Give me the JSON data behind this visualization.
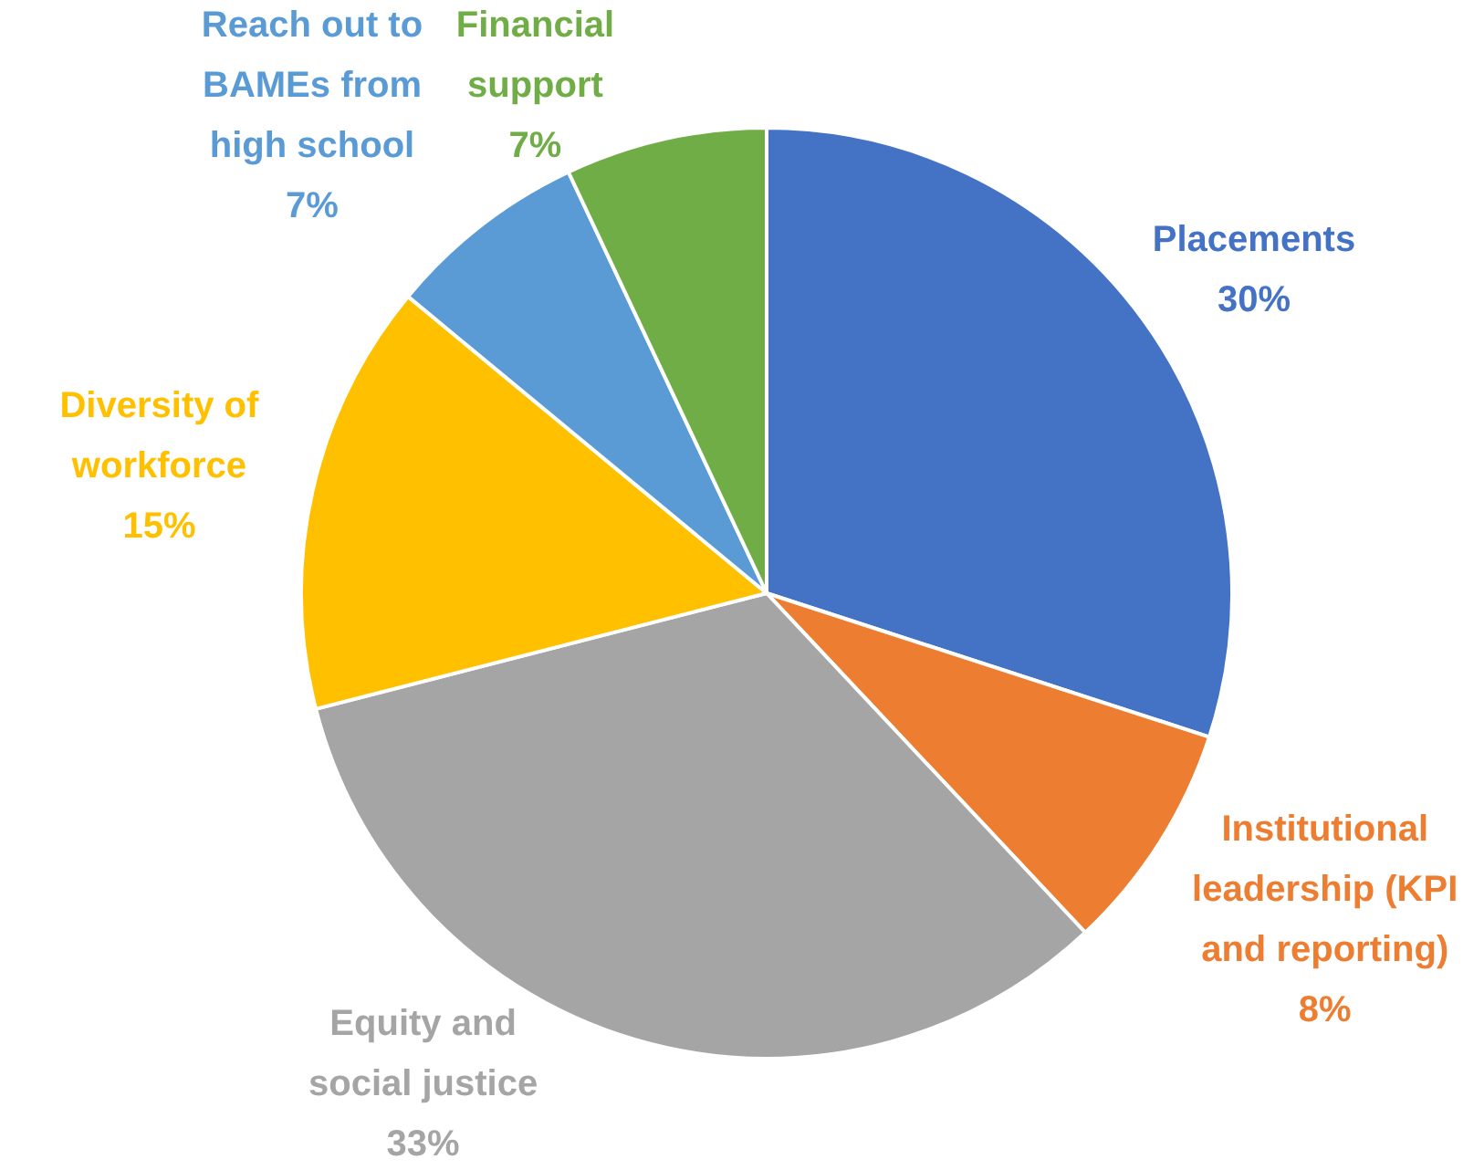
{
  "chart_data": {
    "type": "pie",
    "categories": [
      "Placements",
      "Institutional\nleadership (KPI\nand reporting)",
      "Equity and\nsocial justice",
      "Diversity of\nworkforce",
      "Reach out to\nBAMEs from\nhigh school",
      "Financial\nsupport"
    ],
    "values": [
      30,
      8,
      33,
      15,
      7,
      7
    ],
    "value_labels": [
      "30%",
      "8%",
      "33%",
      "15%",
      "7%",
      "7%"
    ],
    "colors": [
      "#4472c4",
      "#ed7d31",
      "#a5a5a5",
      "#ffc000",
      "#5b9bd5",
      "#70ad47"
    ]
  }
}
